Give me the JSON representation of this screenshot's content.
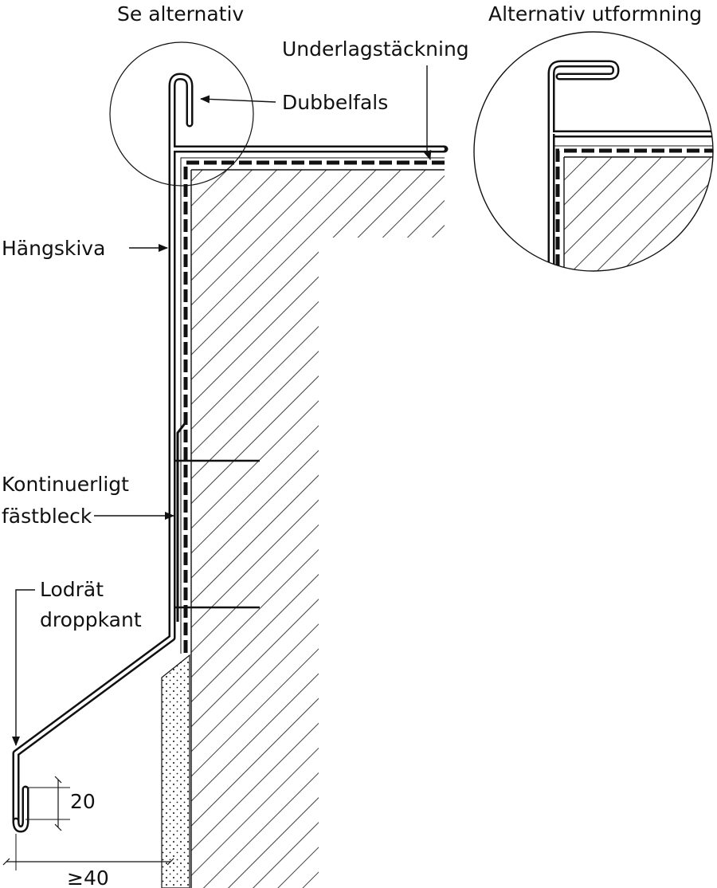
{
  "labels": {
    "see_alternative": "Se alternativ",
    "alternative_design": "Alternativ utformning",
    "underlay_covering": "Underlagstäckning",
    "double_seam": "Dubbelfals",
    "fascia": "Hängskiva",
    "continuous_clip_line1": "Kontinuerligt",
    "continuous_clip_line2": "fästbleck",
    "vertical_drip_line1": "Lodrät",
    "vertical_drip_line2": "droppkant",
    "dim_20": "20",
    "dim_40": "≥40"
  },
  "colors": {
    "ink": "#111111",
    "paper": "#ffffff"
  }
}
